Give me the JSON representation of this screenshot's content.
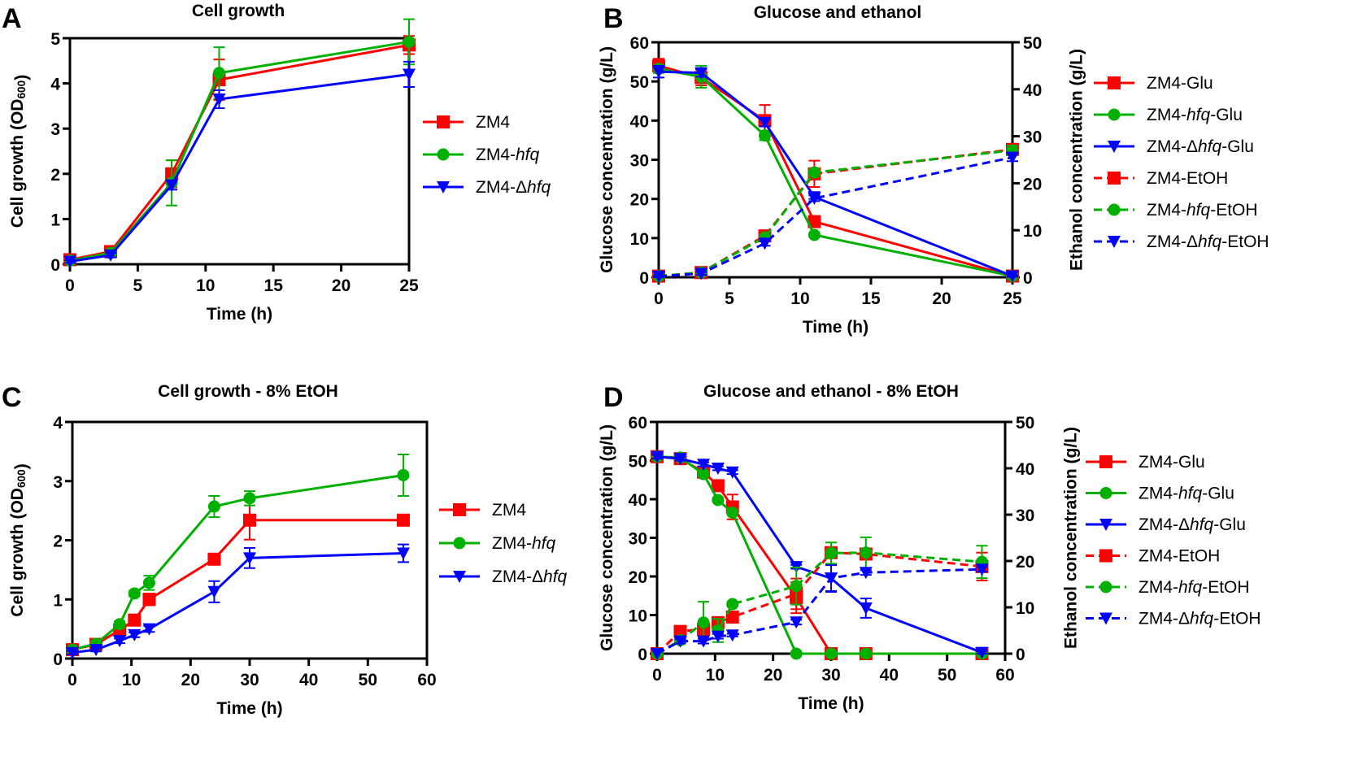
{
  "colors": {
    "ZM4": "#ff0000",
    "hfq": "#00b000",
    "dhfq": "#0000ff",
    "axis": "#000000"
  },
  "chart_data": [
    {
      "panel": "A",
      "type": "line",
      "title": "Cell growth",
      "xlabel": "Time (h)",
      "ylabel": "Cell growth (OD600)",
      "xlim": [
        0,
        25
      ],
      "xticks": [
        0,
        5,
        10,
        15,
        20,
        25
      ],
      "ylim": [
        0,
        5
      ],
      "yticks": [
        0,
        1,
        2,
        3,
        4,
        5
      ],
      "legend_position": "right",
      "series": [
        {
          "name": "ZM4",
          "color": "#ff0000",
          "marker": "square",
          "dash": false,
          "axis": "left",
          "x": [
            0,
            3,
            7.5,
            11,
            25
          ],
          "y": [
            0.1,
            0.28,
            2.0,
            4.08,
            4.85
          ],
          "err": [
            0.03,
            0.05,
            0.3,
            0.45,
            0.2
          ]
        },
        {
          "name": "ZM4-hfq",
          "color": "#00b000",
          "marker": "circle",
          "dash": false,
          "axis": "left",
          "x": [
            0,
            3,
            7.5,
            11,
            25
          ],
          "y": [
            0.08,
            0.25,
            1.8,
            4.23,
            4.92
          ],
          "err": [
            0.03,
            0.05,
            0.5,
            0.57,
            0.5
          ]
        },
        {
          "name": "ZM4-Δhfq",
          "color": "#0000ff",
          "marker": "triangle-down",
          "dash": false,
          "axis": "left",
          "x": [
            0,
            3,
            7.5,
            11,
            25
          ],
          "y": [
            0.06,
            0.2,
            1.75,
            3.65,
            4.2
          ],
          "err": [
            0.03,
            0.05,
            0.1,
            0.2,
            0.28
          ]
        }
      ]
    },
    {
      "panel": "B",
      "type": "line",
      "title": "Glucose and ethanol",
      "xlabel": "Time (h)",
      "ylabel": "Glucose concentration (g/L)",
      "y2label": "Ethanol concentration (g/L)",
      "xlim": [
        0,
        25
      ],
      "xticks": [
        0,
        5,
        10,
        15,
        20,
        25
      ],
      "ylim": [
        0,
        60
      ],
      "yticks": [
        0,
        10,
        20,
        30,
        40,
        50,
        60
      ],
      "y2lim": [
        0,
        50
      ],
      "y2ticks": [
        0,
        10,
        20,
        30,
        40,
        50
      ],
      "legend_position": "right",
      "series": [
        {
          "name": "ZM4-Glu",
          "color": "#ff0000",
          "marker": "square",
          "dash": false,
          "axis": "left",
          "x": [
            0,
            3,
            7.5,
            11,
            25
          ],
          "y": [
            54,
            51,
            40,
            14.2,
            0.3
          ],
          "err": [
            1.8,
            2,
            4,
            0.5,
            0.2
          ]
        },
        {
          "name": "ZM4-hfq-Glu",
          "color": "#00b000",
          "marker": "circle",
          "dash": false,
          "axis": "left",
          "x": [
            0,
            3,
            7.5,
            11,
            25
          ],
          "y": [
            53.2,
            51.2,
            36.2,
            10.8,
            0.3
          ],
          "err": [
            1,
            2.8,
            1.2,
            0.3,
            0.2
          ]
        },
        {
          "name": "ZM4-Δhfq-Glu",
          "color": "#0000ff",
          "marker": "triangle-down",
          "dash": false,
          "axis": "left",
          "x": [
            0,
            3,
            7.5,
            11,
            25
          ],
          "y": [
            52.5,
            52.2,
            39.5,
            20.5,
            0.3
          ],
          "err": [
            1.5,
            1,
            1,
            0.5,
            0.2
          ]
        },
        {
          "name": "ZM4-EtOH",
          "color": "#ff0000",
          "marker": "square",
          "dash": true,
          "axis": "right",
          "x": [
            0,
            3,
            7.5,
            11,
            25
          ],
          "y": [
            0.25,
            1.0,
            8.8,
            22.0,
            27.2
          ],
          "err": [
            0.2,
            0.3,
            0.6,
            2.8,
            1
          ]
        },
        {
          "name": "ZM4-hfq-EtOH",
          "color": "#00b000",
          "marker": "circle",
          "dash": true,
          "axis": "right",
          "x": [
            0,
            3,
            7.5,
            11,
            25
          ],
          "y": [
            0.25,
            1.0,
            8.5,
            22.3,
            27.0
          ],
          "err": [
            0.2,
            0.3,
            0.5,
            0.8,
            1
          ]
        },
        {
          "name": "ZM4-Δhfq-EtOH",
          "color": "#0000ff",
          "marker": "triangle-down",
          "dash": true,
          "axis": "right",
          "x": [
            0,
            3,
            7.5,
            11,
            25
          ],
          "y": [
            0.2,
            0.8,
            7.2,
            16.8,
            25.5
          ],
          "err": [
            0.2,
            0.3,
            0.5,
            0.6,
            0.8
          ]
        }
      ]
    },
    {
      "panel": "C",
      "type": "line",
      "title": "Cell growth - 8% EtOH",
      "xlabel": "Time (h)",
      "ylabel": "Cell growth (OD600)",
      "xlim": [
        0,
        60
      ],
      "xticks": [
        0,
        10,
        20,
        30,
        40,
        50,
        60
      ],
      "ylim": [
        0,
        4
      ],
      "yticks": [
        0,
        1,
        2,
        3,
        4
      ],
      "legend_position": "right",
      "series": [
        {
          "name": "ZM4",
          "color": "#ff0000",
          "marker": "square",
          "dash": false,
          "axis": "left",
          "x": [
            0,
            4,
            8,
            10.5,
            13,
            24,
            30,
            56
          ],
          "y": [
            0.15,
            0.24,
            0.48,
            0.65,
            1.0,
            1.68,
            2.34,
            2.34
          ],
          "err": [
            0.03,
            0.03,
            0.05,
            0.05,
            0.1,
            0.05,
            0.33,
            0.05
          ]
        },
        {
          "name": "ZM4-hfq",
          "color": "#00b000",
          "marker": "circle",
          "dash": false,
          "axis": "left",
          "x": [
            0,
            4,
            8,
            10.5,
            13,
            24,
            30,
            56
          ],
          "y": [
            0.15,
            0.25,
            0.58,
            1.1,
            1.28,
            2.57,
            2.71,
            3.1
          ],
          "err": [
            0.03,
            0.03,
            0.05,
            0.05,
            0.12,
            0.18,
            0.12,
            0.35
          ]
        },
        {
          "name": "ZM4-Δhfq",
          "color": "#0000ff",
          "marker": "triangle-down",
          "dash": false,
          "axis": "left",
          "x": [
            0,
            4,
            8,
            10.5,
            13,
            24,
            30,
            56
          ],
          "y": [
            0.1,
            0.15,
            0.3,
            0.4,
            0.5,
            1.13,
            1.7,
            1.78
          ],
          "err": [
            0.03,
            0.03,
            0.04,
            0.04,
            0.05,
            0.18,
            0.17,
            0.15
          ]
        }
      ]
    },
    {
      "panel": "D",
      "type": "line",
      "title": "Glucose and ethanol - 8% EtOH",
      "xlabel": "Time (h)",
      "ylabel": "Glucose concentration (g/L)",
      "y2label": "Ethanol concentration (g/L)",
      "xlim": [
        0,
        60
      ],
      "xticks": [
        0,
        10,
        20,
        30,
        40,
        50,
        60
      ],
      "ylim": [
        0,
        60
      ],
      "yticks": [
        0,
        10,
        20,
        30,
        40,
        50,
        60
      ],
      "y2lim": [
        0,
        50
      ],
      "y2ticks": [
        0,
        10,
        20,
        30,
        40,
        50
      ],
      "legend_position": "right",
      "series": [
        {
          "name": "ZM4-Glu",
          "color": "#ff0000",
          "marker": "square",
          "dash": false,
          "axis": "left",
          "x": [
            0,
            4,
            8,
            10.5,
            13,
            24,
            30,
            36,
            56
          ],
          "y": [
            51,
            50.5,
            47,
            43.5,
            38,
            14.5,
            0,
            0,
            0
          ],
          "err": [
            0.5,
            0.5,
            1,
            1,
            3.2,
            4,
            0,
            0,
            0
          ]
        },
        {
          "name": "ZM4-hfq-Glu",
          "color": "#00b000",
          "marker": "circle",
          "dash": false,
          "axis": "left",
          "x": [
            0,
            4,
            8,
            10.5,
            13,
            24,
            30,
            36,
            56
          ],
          "y": [
            51,
            50.8,
            46.5,
            39.8,
            36.5,
            0,
            0,
            0,
            0
          ],
          "err": [
            0.5,
            0.5,
            0.5,
            0.5,
            0.5,
            0,
            0,
            0,
            0
          ]
        },
        {
          "name": "ZM4-Δhfq-Glu",
          "color": "#0000ff",
          "marker": "triangle-down",
          "dash": false,
          "axis": "left",
          "x": [
            0,
            4,
            8,
            10.5,
            13,
            24,
            30,
            36,
            56
          ],
          "y": [
            51,
            50.5,
            49,
            48,
            47,
            22.5,
            19.5,
            11.8,
            0.3
          ],
          "err": [
            0.5,
            0.5,
            0.5,
            0.5,
            0.5,
            0.5,
            3.5,
            2.5,
            0.3
          ]
        },
        {
          "name": "ZM4-EtOH",
          "color": "#ff0000",
          "marker": "square",
          "dash": true,
          "axis": "right",
          "x": [
            0,
            4,
            8,
            10.5,
            13,
            24,
            30,
            36,
            56
          ],
          "y": [
            0,
            4.8,
            5.3,
            6.7,
            7.9,
            12.9,
            21.8,
            21.5,
            18.8
          ],
          "err": [
            0,
            0.5,
            1.2,
            1,
            0.8,
            3.3,
            0.8,
            1.2,
            3
          ]
        },
        {
          "name": "ZM4-hfq-EtOH",
          "color": "#00b000",
          "marker": "circle",
          "dash": true,
          "axis": "right",
          "x": [
            0,
            4,
            8,
            10.5,
            13,
            24,
            30,
            36,
            56
          ],
          "y": [
            0,
            2.9,
            6.7,
            5.0,
            10.7,
            14.6,
            21.7,
            21.8,
            19.8
          ],
          "err": [
            0,
            0.5,
            4.5,
            2.5,
            0.5,
            4,
            2.3,
            3.3,
            3.5
          ]
        },
        {
          "name": "ZM4-Δhfq-EtOH",
          "color": "#0000ff",
          "marker": "triangle-down",
          "dash": true,
          "axis": "right",
          "x": [
            0,
            4,
            8,
            10.5,
            13,
            24,
            30,
            36,
            56
          ],
          "y": [
            0,
            2.7,
            2.7,
            3.75,
            4.0,
            6.8,
            16.3,
            17.5,
            18.2
          ],
          "err": [
            0,
            0.5,
            0.5,
            0.5,
            0.3,
            0.5,
            2.8,
            0.5,
            0.5
          ]
        }
      ]
    }
  ]
}
